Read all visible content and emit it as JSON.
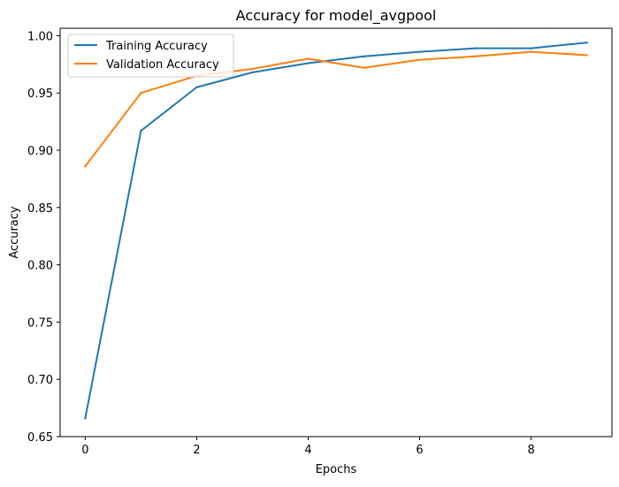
{
  "chart_data": {
    "type": "line",
    "title": "Accuracy for model_avgpool",
    "xlabel": "Epochs",
    "ylabel": "Accuracy",
    "x": [
      0,
      1,
      2,
      3,
      4,
      5,
      6,
      7,
      8,
      9
    ],
    "xlim": [
      -0.45,
      9.45
    ],
    "ylim": [
      0.65,
      1.0065
    ],
    "xticks": [
      0,
      2,
      4,
      6,
      8
    ],
    "yticks": [
      0.65,
      0.7,
      0.75,
      0.8,
      0.85,
      0.9,
      0.95,
      1.0
    ],
    "xtick_labels": [
      "0",
      "2",
      "4",
      "6",
      "8"
    ],
    "ytick_labels": [
      "0.65",
      "0.70",
      "0.75",
      "0.80",
      "0.85",
      "0.90",
      "0.95",
      "1.00"
    ],
    "grid": false,
    "legend_position": "top-left",
    "series": [
      {
        "name": "Training Accuracy",
        "color": "#1f77b4",
        "values": [
          0.666,
          0.917,
          0.955,
          0.968,
          0.976,
          0.982,
          0.986,
          0.989,
          0.989,
          0.994
        ]
      },
      {
        "name": "Validation Accuracy",
        "color": "#ff7f0e",
        "values": [
          0.886,
          0.95,
          0.965,
          0.971,
          0.98,
          0.972,
          0.979,
          0.982,
          0.986,
          0.983
        ]
      }
    ]
  }
}
